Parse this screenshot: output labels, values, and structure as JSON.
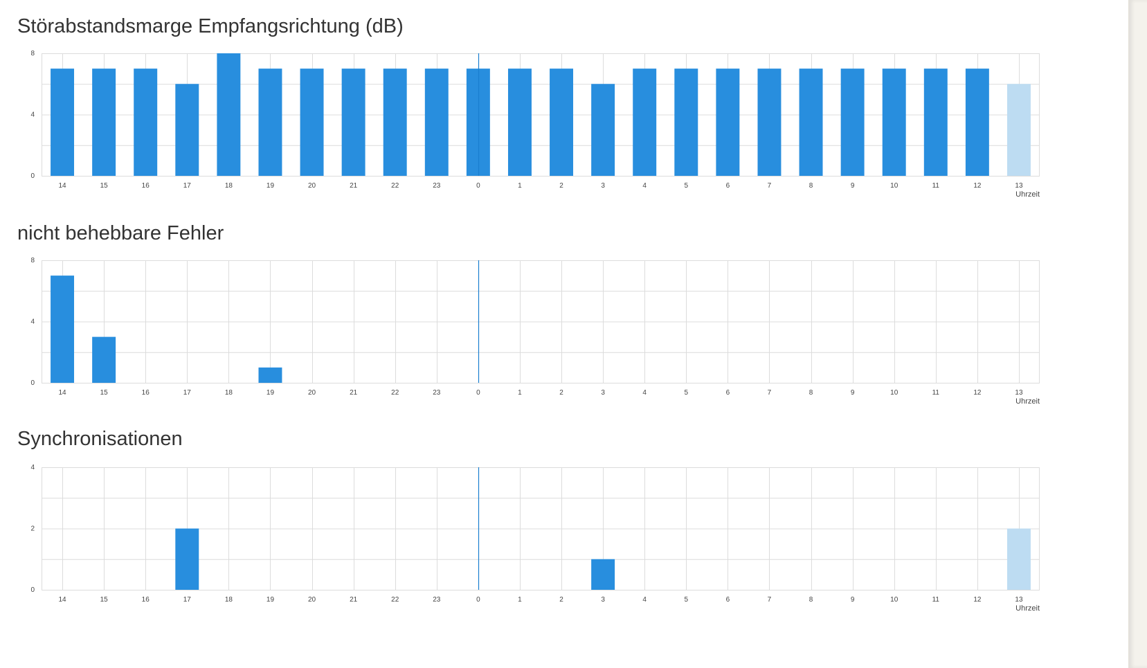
{
  "chart_data": [
    {
      "type": "bar",
      "title": "Störabstandsmarge Empfangsrichtung (dB)",
      "categories": [
        "14",
        "15",
        "16",
        "17",
        "18",
        "19",
        "20",
        "21",
        "22",
        "23",
        "0",
        "1",
        "2",
        "3",
        "4",
        "5",
        "6",
        "7",
        "8",
        "9",
        "10",
        "11",
        "12",
        "13"
      ],
      "values": [
        7,
        7,
        7,
        6,
        8,
        7,
        7,
        7,
        7,
        7,
        7,
        7,
        7,
        6,
        7,
        7,
        7,
        7,
        7,
        7,
        7,
        7,
        7,
        6
      ],
      "current_period_index": 23,
      "divider_category": "0",
      "xlabel": "Uhrzeit",
      "ylabel": "",
      "ylim": [
        0,
        8
      ],
      "yticks": [
        "0",
        "4",
        "8"
      ],
      "grid": true
    },
    {
      "type": "bar",
      "title": "nicht behebbare Fehler",
      "categories": [
        "14",
        "15",
        "16",
        "17",
        "18",
        "19",
        "20",
        "21",
        "22",
        "23",
        "0",
        "1",
        "2",
        "3",
        "4",
        "5",
        "6",
        "7",
        "8",
        "9",
        "10",
        "11",
        "12",
        "13"
      ],
      "values": [
        7,
        3,
        0,
        0,
        0,
        1,
        0,
        0,
        0,
        0,
        0,
        0,
        0,
        0,
        0,
        0,
        0,
        0,
        0,
        0,
        0,
        0,
        0,
        0
      ],
      "current_period_index": 23,
      "divider_category": "0",
      "xlabel": "Uhrzeit",
      "ylabel": "",
      "ylim": [
        0,
        8
      ],
      "yticks": [
        "0",
        "4",
        "8"
      ],
      "grid": true
    },
    {
      "type": "bar",
      "title": "Synchronisationen",
      "categories": [
        "14",
        "15",
        "16",
        "17",
        "18",
        "19",
        "20",
        "21",
        "22",
        "23",
        "0",
        "1",
        "2",
        "3",
        "4",
        "5",
        "6",
        "7",
        "8",
        "9",
        "10",
        "11",
        "12",
        "13"
      ],
      "values": [
        0,
        0,
        0,
        2,
        0,
        0,
        0,
        0,
        0,
        0,
        0,
        0,
        0,
        1,
        0,
        0,
        0,
        0,
        0,
        0,
        0,
        0,
        0,
        2
      ],
      "current_period_index": 23,
      "divider_category": "0",
      "xlabel": "Uhrzeit",
      "ylabel": "",
      "ylim": [
        0,
        4
      ],
      "yticks": [
        "0",
        "2",
        "4"
      ],
      "grid": true
    }
  ],
  "colors": {
    "bar": "#288ede",
    "bar_current": "#bddcf2",
    "divider": "#1a7fd0",
    "grid": "#dcdcdc"
  }
}
